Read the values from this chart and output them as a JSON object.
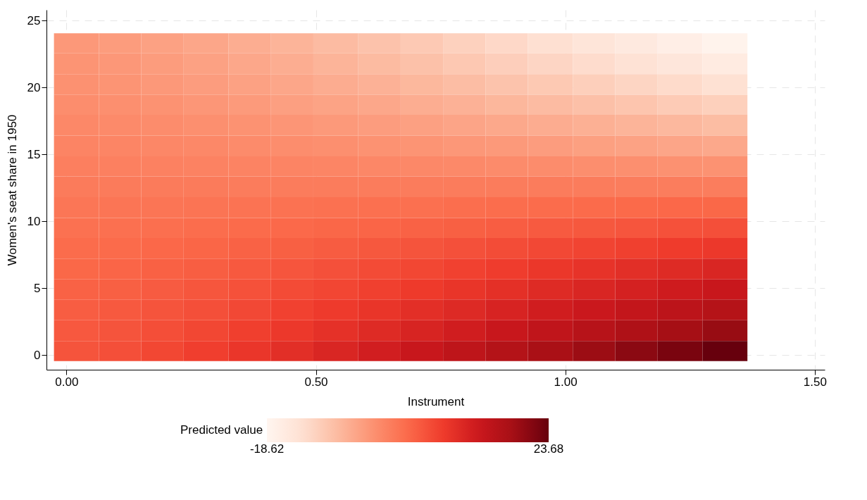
{
  "chart_data": {
    "type": "heatmap",
    "xlabel": "Instrument",
    "ylabel": "Women's seat share in 1950",
    "legend_title": "Predicted value",
    "x": [
      0.02,
      0.11,
      0.19,
      0.28,
      0.37,
      0.45,
      0.54,
      0.63,
      0.71,
      0.8,
      0.88,
      0.97,
      1.06,
      1.14,
      1.23,
      1.32
    ],
    "y": [
      23.3,
      21.8,
      20.2,
      18.7,
      17.2,
      15.6,
      14.1,
      12.6,
      11.0,
      9.5,
      8.0,
      6.4,
      4.9,
      3.4,
      1.8,
      0.3
    ],
    "cells": [
      [
        -3.5,
        -4.0,
        -4.7,
        -5.4,
        -6.3,
        -7.2,
        -8.1,
        -9.1,
        -10.1,
        -11.2,
        -12.2,
        -13.3,
        -14.5,
        -15.6,
        -16.8,
        -18.0
      ],
      [
        -3.0,
        -3.4,
        -4.0,
        -4.7,
        -5.5,
        -6.3,
        -7.1,
        -8.0,
        -8.9,
        -9.9,
        -10.8,
        -11.8,
        -12.8,
        -13.9,
        -14.9,
        -16.0
      ],
      [
        -2.6,
        -3.0,
        -3.5,
        -4.1,
        -4.7,
        -5.4,
        -6.1,
        -6.8,
        -7.6,
        -8.4,
        -9.2,
        -10.0,
        -10.9,
        -11.7,
        -12.6,
        -13.5
      ],
      [
        -2.1,
        -2.4,
        -2.8,
        -3.3,
        -3.8,
        -4.4,
        -4.9,
        -5.5,
        -6.2,
        -6.8,
        -7.5,
        -8.1,
        -8.8,
        -9.5,
        -10.3,
        -11.0
      ],
      [
        -1.5,
        -1.7,
        -2.0,
        -2.4,
        -2.8,
        -3.2,
        -3.7,
        -4.1,
        -4.6,
        -5.1,
        -5.6,
        -6.1,
        -6.6,
        -7.2,
        -7.7,
        -8.3
      ],
      [
        -0.9,
        -1.1,
        -1.3,
        -1.5,
        -1.8,
        -2.1,
        -2.4,
        -2.7,
        -3.0,
        -3.4,
        -3.7,
        -4.1,
        -4.5,
        -4.8,
        -5.2,
        -5.6
      ],
      [
        -0.3,
        -0.4,
        -0.5,
        -0.6,
        -0.8,
        -0.9,
        -1.1,
        -1.3,
        -1.4,
        -1.6,
        -1.8,
        -2.0,
        -2.2,
        -2.4,
        -2.6,
        -2.8
      ],
      [
        0.3,
        0.3,
        0.3,
        0.3,
        0.2,
        0.2,
        0.2,
        0.2,
        0.2,
        0.1,
        0.1,
        0.1,
        0.1,
        0.0,
        0.0,
        0.0
      ],
      [
        1.0,
        1.1,
        1.1,
        1.2,
        1.3,
        1.5,
        1.6,
        1.7,
        1.8,
        2.0,
        2.1,
        2.2,
        2.4,
        2.5,
        2.7,
        2.8
      ],
      [
        1.6,
        1.7,
        1.9,
        2.1,
        2.4,
        2.6,
        2.9,
        3.1,
        3.4,
        3.7,
        4.0,
        4.3,
        4.6,
        4.9,
        5.3,
        5.6
      ],
      [
        2.2,
        2.4,
        2.7,
        3.0,
        3.4,
        3.7,
        4.1,
        4.6,
        5.0,
        5.4,
        5.9,
        6.3,
        6.8,
        7.3,
        7.8,
        8.3
      ],
      [
        2.8,
        3.1,
        3.5,
        3.9,
        4.4,
        4.9,
        5.4,
        6.0,
        6.5,
        7.1,
        7.7,
        8.4,
        9.0,
        9.7,
        10.3,
        11.0
      ],
      [
        3.4,
        3.7,
        4.2,
        4.8,
        5.3,
        6.0,
        6.6,
        7.3,
        8.0,
        8.7,
        9.5,
        10.3,
        11.0,
        11.8,
        12.7,
        13.5
      ],
      [
        4.0,
        4.4,
        5.0,
        5.6,
        6.3,
        7.1,
        7.9,
        8.7,
        9.6,
        10.4,
        11.4,
        12.3,
        13.2,
        14.2,
        15.2,
        16.2
      ],
      [
        4.5,
        5.0,
        5.7,
        6.5,
        7.4,
        8.3,
        9.3,
        10.3,
        11.3,
        12.4,
        13.5,
        14.7,
        15.9,
        17.0,
        18.3,
        19.5
      ],
      [
        5.0,
        5.6,
        6.5,
        7.5,
        8.6,
        9.7,
        11.0,
        12.2,
        13.5,
        14.9,
        16.3,
        17.7,
        19.2,
        20.6,
        22.1,
        23.7
      ]
    ],
    "xlim": [
      -0.04,
      1.52
    ],
    "xticks": [
      {
        "value": 0,
        "label": "0.00"
      },
      {
        "value": 0.5,
        "label": "0.50"
      },
      {
        "value": 1,
        "label": "1.00"
      },
      {
        "value": 1.5,
        "label": "1.50"
      }
    ],
    "ylim": [
      -1.1,
      25.8
    ],
    "yticks": [
      0,
      5,
      10,
      15,
      20,
      25
    ],
    "clim": [
      -18.62,
      23.68
    ],
    "cticks": [
      -18.62,
      23.68
    ],
    "grid": true
  }
}
